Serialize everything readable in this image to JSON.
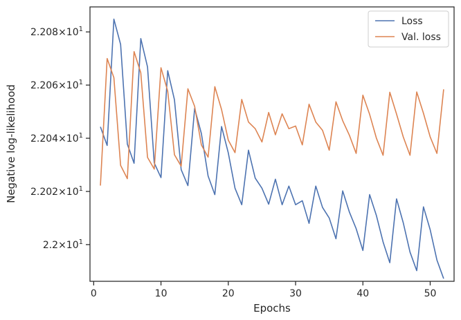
{
  "chart_data": {
    "type": "line",
    "xlabel": "Epochs",
    "ylabel": "Negative log-likelihood",
    "xlim": [
      -0.55,
      53.55
    ],
    "ylim": [
      21.9862,
      22.0894
    ],
    "xticks": [
      0,
      10,
      20,
      30,
      40,
      50
    ],
    "xtick_labels": [
      "0",
      "10",
      "20",
      "30",
      "40",
      "50"
    ],
    "yticks": [
      22.0,
      22.02,
      22.04,
      22.06,
      22.08
    ],
    "ytick_labels": [
      {
        "mant": "2.2",
        "exp": "1"
      },
      {
        "mant": "2.202",
        "exp": "1"
      },
      {
        "mant": "2.204",
        "exp": "1"
      },
      {
        "mant": "2.206",
        "exp": "1"
      },
      {
        "mant": "2.208",
        "exp": "1"
      }
    ],
    "ytick_times": "×10",
    "grid": false,
    "legend_position": "top-right",
    "x": [
      1,
      2,
      3,
      4,
      5,
      6,
      7,
      8,
      9,
      10,
      11,
      12,
      13,
      14,
      15,
      16,
      17,
      18,
      19,
      20,
      21,
      22,
      23,
      24,
      25,
      26,
      27,
      28,
      29,
      30,
      31,
      32,
      33,
      34,
      35,
      36,
      37,
      38,
      39,
      40,
      41,
      42,
      43,
      44,
      45,
      46,
      47,
      48,
      49,
      50,
      51,
      52
    ],
    "series": [
      {
        "name": "Loss",
        "color": "#4c72b0",
        "values": [
          22.0443,
          22.0373,
          22.0848,
          22.0753,
          22.0378,
          22.0306,
          22.0775,
          22.0668,
          22.0307,
          22.0252,
          22.0654,
          22.0545,
          22.0282,
          22.0222,
          22.0512,
          22.0418,
          22.0258,
          22.0188,
          22.0444,
          22.0345,
          22.0212,
          22.015,
          22.0355,
          22.025,
          22.0212,
          22.0152,
          22.0246,
          22.015,
          22.022,
          22.015,
          22.0165,
          22.008,
          22.022,
          22.014,
          22.01,
          22.0022,
          22.0202,
          22.0122,
          22.006,
          21.9978,
          22.0188,
          22.011,
          22.001,
          21.9932,
          22.0172,
          22.0082,
          21.9972,
          21.9902,
          22.0142,
          22.0056,
          21.9942,
          21.9872
        ]
      },
      {
        "name": "Val. loss",
        "color": "#dd8452",
        "values": [
          22.0222,
          22.07,
          22.0628,
          22.0298,
          22.0248,
          22.0726,
          22.0646,
          22.0328,
          22.0284,
          22.0665,
          22.0577,
          22.0338,
          22.0295,
          22.0586,
          22.052,
          22.0375,
          22.0329,
          22.0594,
          22.0508,
          22.0393,
          22.0346,
          22.0546,
          22.0461,
          22.0436,
          22.0386,
          22.0497,
          22.0413,
          22.0492,
          22.0436,
          22.0446,
          22.0375,
          22.0528,
          22.0461,
          22.043,
          22.0355,
          22.0537,
          22.0466,
          22.0411,
          22.0343,
          22.0562,
          22.049,
          22.0401,
          22.0336,
          22.0573,
          22.0491,
          22.0405,
          22.0336,
          22.0574,
          22.0494,
          22.0405,
          22.0343,
          22.0584
        ]
      }
    ]
  }
}
